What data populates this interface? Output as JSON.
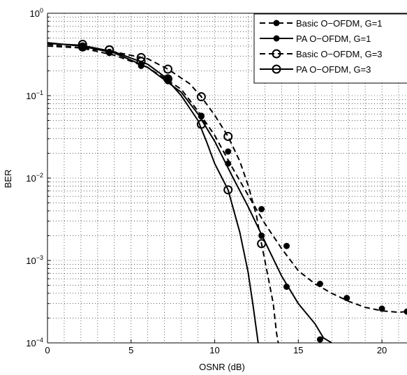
{
  "chart_data": {
    "type": "line",
    "title": "",
    "xlabel": "OSNR (dB)",
    "ylabel": "BER",
    "xlim": [
      0,
      21.5
    ],
    "ylim": [
      0.0001,
      1
    ],
    "yscale": "log",
    "grid": true,
    "legend_position": "top-right",
    "x_ticks": [
      0,
      5,
      10,
      15,
      20
    ],
    "y_ticks": [
      {
        "base": "10",
        "exp": "0"
      },
      {
        "base": "10",
        "exp": "−1"
      },
      {
        "base": "10",
        "exp": "−2"
      },
      {
        "base": "10",
        "exp": "−3"
      },
      {
        "base": "10",
        "exp": "−4"
      }
    ],
    "series": [
      {
        "name": "Basic O−OFDM, G=1",
        "style": "dashed",
        "marker": "filled-circle",
        "line": [
          [
            0,
            0.42
          ],
          [
            2,
            0.38
          ],
          [
            4,
            0.31
          ],
          [
            6,
            0.22
          ],
          [
            8,
            0.12
          ],
          [
            9,
            0.065
          ],
          [
            10,
            0.033
          ],
          [
            11,
            0.014
          ],
          [
            12,
            0.0062
          ],
          [
            13,
            0.0028
          ],
          [
            14,
            0.0014
          ],
          [
            15,
            0.00075
          ],
          [
            16,
            0.00052
          ],
          [
            17,
            0.0004
          ],
          [
            18,
            0.00032
          ],
          [
            19,
            0.00027
          ],
          [
            20,
            0.000245
          ],
          [
            21,
            0.000235
          ],
          [
            21.5,
            0.00024
          ]
        ],
        "markers": [
          [
            2.1,
            0.38
          ],
          [
            3.7,
            0.33
          ],
          [
            5.6,
            0.24
          ],
          [
            7.2,
            0.16
          ],
          [
            9.2,
            0.057
          ],
          [
            10.8,
            0.021
          ],
          [
            12.8,
            0.0042
          ],
          [
            14.3,
            0.0015
          ],
          [
            16.3,
            0.00052
          ],
          [
            17.9,
            0.00035
          ],
          [
            20.0,
            0.00026
          ],
          [
            21.5,
            0.00024
          ]
        ]
      },
      {
        "name": "PA O−OFDM, G=1",
        "style": "solid",
        "marker": "filled-circle",
        "line": [
          [
            0,
            0.44
          ],
          [
            2,
            0.4
          ],
          [
            4,
            0.33
          ],
          [
            6,
            0.22
          ],
          [
            8,
            0.11
          ],
          [
            9,
            0.06
          ],
          [
            10,
            0.028
          ],
          [
            11,
            0.011
          ],
          [
            12,
            0.0045
          ],
          [
            13,
            0.0017
          ],
          [
            14,
            0.00065
          ],
          [
            15,
            0.0003
          ],
          [
            16,
            0.00017
          ],
          [
            16.5,
            0.000115
          ],
          [
            17,
            0.0001
          ]
        ],
        "markers": [
          [
            2.1,
            0.4
          ],
          [
            3.7,
            0.34
          ],
          [
            5.6,
            0.23
          ],
          [
            7.2,
            0.15
          ],
          [
            9.2,
            0.056
          ],
          [
            10.8,
            0.015
          ],
          [
            12.8,
            0.002
          ],
          [
            14.3,
            0.00048
          ],
          [
            16.3,
            0.00011
          ]
        ]
      },
      {
        "name": "Basic O−OFDM, G=3",
        "style": "dashed",
        "marker": "open-circle",
        "line": [
          [
            0,
            0.4
          ],
          [
            2,
            0.38
          ],
          [
            4,
            0.34
          ],
          [
            6,
            0.28
          ],
          [
            7.2,
            0.21
          ],
          [
            8.5,
            0.14
          ],
          [
            9.2,
            0.097
          ],
          [
            10,
            0.058
          ],
          [
            10.8,
            0.032
          ],
          [
            11.5,
            0.016
          ],
          [
            12,
            0.0082
          ],
          [
            12.5,
            0.0035
          ],
          [
            12.8,
            0.0016
          ],
          [
            13.2,
            0.00062
          ],
          [
            13.5,
            0.0003
          ],
          [
            13.7,
            0.00013
          ],
          [
            13.8,
            0.0001
          ]
        ],
        "markers": [
          [
            2.1,
            0.39
          ],
          [
            3.7,
            0.36
          ],
          [
            5.6,
            0.29
          ],
          [
            7.2,
            0.21
          ],
          [
            9.2,
            0.097
          ],
          [
            10.8,
            0.032
          ]
        ]
      },
      {
        "name": "PA O−OFDM, G=3",
        "style": "solid",
        "marker": "open-circle",
        "line": [
          [
            0,
            0.43
          ],
          [
            2,
            0.41
          ],
          [
            4,
            0.34
          ],
          [
            6,
            0.24
          ],
          [
            7,
            0.17
          ],
          [
            8,
            0.1
          ],
          [
            9,
            0.05
          ],
          [
            9.5,
            0.028
          ],
          [
            10,
            0.015
          ],
          [
            10.8,
            0.0072
          ],
          [
            11.5,
            0.0022
          ],
          [
            12,
            0.00072
          ],
          [
            12.3,
            0.00028
          ],
          [
            12.6,
            0.0001
          ]
        ],
        "markers": [
          [
            2.1,
            0.42
          ],
          [
            3.7,
            0.36
          ],
          [
            5.6,
            0.26
          ],
          [
            7.2,
            0.16
          ],
          [
            9.2,
            0.045
          ],
          [
            10.8,
            0.0072
          ],
          [
            12.8,
            0.0016
          ]
        ]
      }
    ]
  }
}
